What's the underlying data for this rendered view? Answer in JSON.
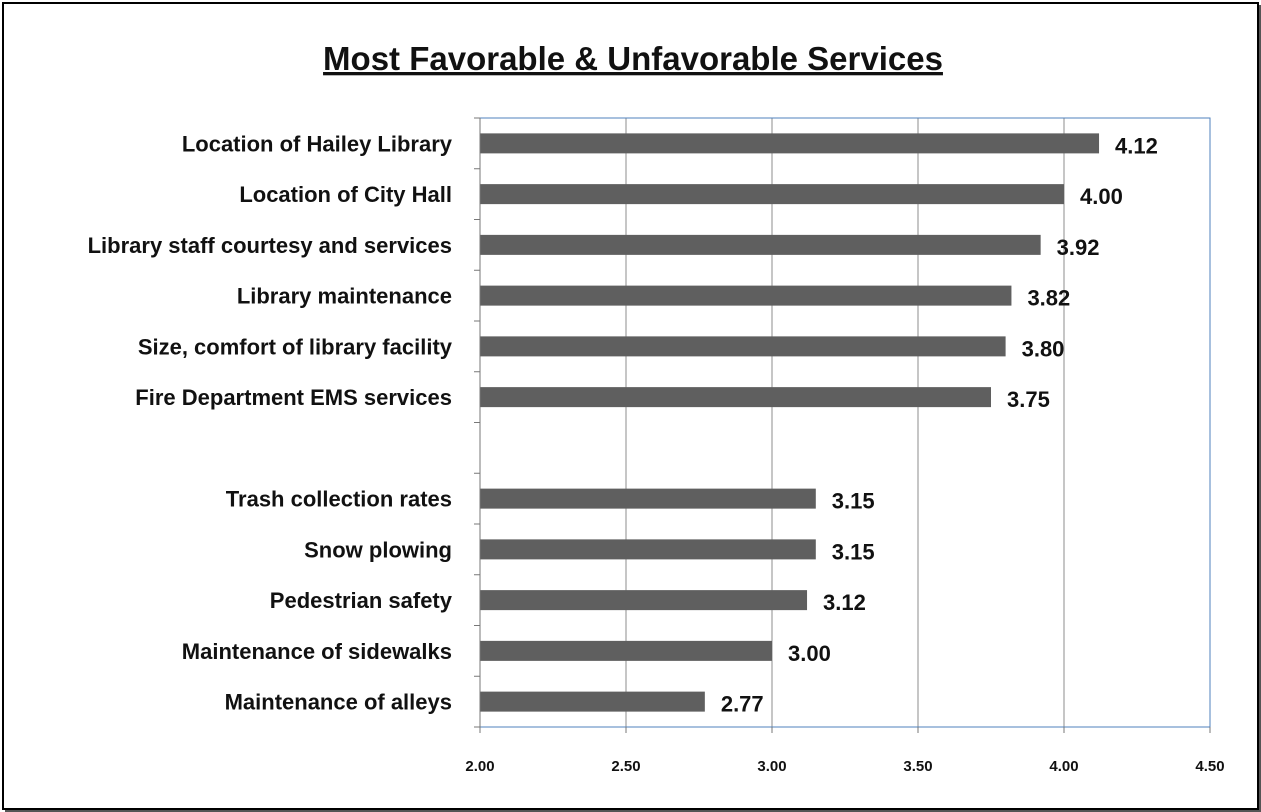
{
  "chart_data": {
    "type": "bar",
    "orientation": "horizontal",
    "title": "Most Favorable & Unfavorable Services",
    "categories": [
      "Location of Hailey Library",
      "Location of City Hall",
      "Library staff courtesy and services",
      "Library maintenance",
      "Size, comfort of library facility",
      "Fire Department EMS services",
      "",
      "Trash collection rates",
      "Snow plowing",
      "Pedestrian safety",
      "Maintenance of sidewalks",
      "Maintenance of alleys"
    ],
    "values": [
      4.12,
      4.0,
      3.92,
      3.82,
      3.8,
      3.75,
      null,
      3.15,
      3.15,
      3.12,
      3.0,
      2.77
    ],
    "value_labels": [
      "4.12",
      "4.00",
      "3.92",
      "3.82",
      "3.80",
      "3.75",
      "",
      "3.15",
      "3.15",
      "3.12",
      "3.00",
      "2.77"
    ],
    "xlim": [
      2.0,
      4.5
    ],
    "x_ticks": [
      "2.00",
      "2.50",
      "3.00",
      "3.50",
      "4.00",
      "4.50"
    ],
    "x_tick_values": [
      2.0,
      2.5,
      3.0,
      3.5,
      4.0,
      4.5
    ],
    "xlabel": "",
    "ylabel": "",
    "grid": "vertical",
    "legend": "none",
    "colors": {
      "bar": "#5f5f5f",
      "grid": "#8c8c8c",
      "plot_border": "#4f81bd",
      "text": "#111111"
    }
  }
}
